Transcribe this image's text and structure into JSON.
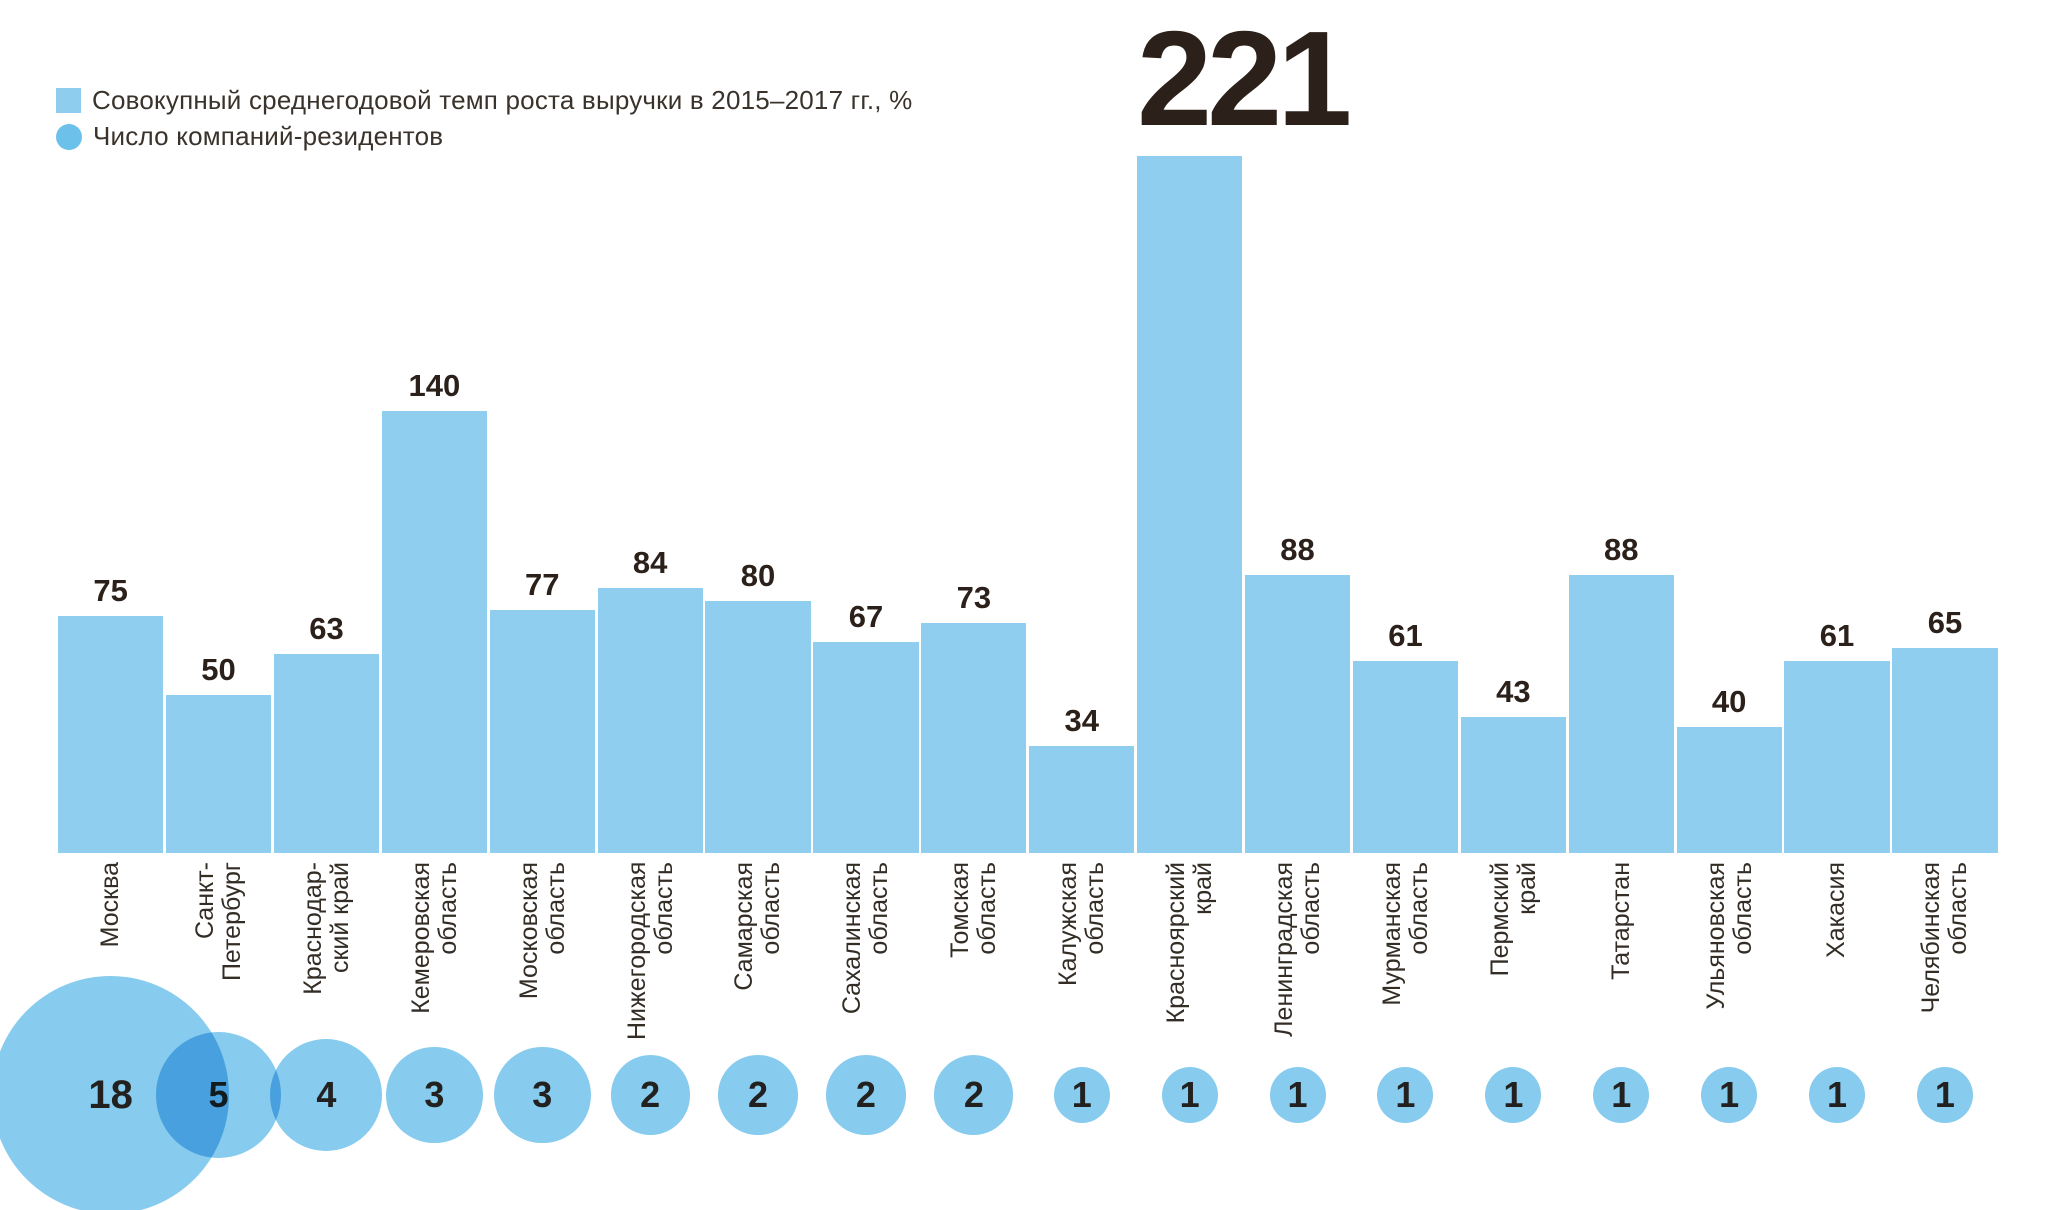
{
  "legend": {
    "bar_label": "Совокупный среднегодовой темп роста выручки в 2015–2017 гг., %",
    "bubble_label": "Число компаний-резидентов"
  },
  "colors": {
    "bar": "#8FCEEF",
    "bubble": "#87CBEE",
    "legend_square": "#8FCDEF",
    "legend_circle": "#6CC1EA",
    "value_text": "#2B211A",
    "label_text": "#332D26"
  },
  "regions": [
    {
      "name": "Москва",
      "display_label": "Москва",
      "growth": 75,
      "companies": 18
    },
    {
      "name": "Санкт-Петербург",
      "display_label": "Санкт-\nПетербург",
      "growth": 50,
      "companies": 5
    },
    {
      "name": "Краснодарский край",
      "display_label": "Краснодар-\nский край",
      "growth": 63,
      "companies": 4
    },
    {
      "name": "Кемеровская область",
      "display_label": "Кемеровская\nобласть",
      "growth": 140,
      "companies": 3
    },
    {
      "name": "Московская область",
      "display_label": "Московская\nобласть",
      "growth": 77,
      "companies": 3
    },
    {
      "name": "Нижегородская область",
      "display_label": "Нижегородская\nобласть",
      "growth": 84,
      "companies": 2
    },
    {
      "name": "Самарская область",
      "display_label": "Самарская\nобласть",
      "growth": 80,
      "companies": 2
    },
    {
      "name": "Сахалинская область",
      "display_label": "Сахалинская\nобласть",
      "growth": 67,
      "companies": 2
    },
    {
      "name": "Томская область",
      "display_label": "Томская\nобласть",
      "growth": 73,
      "companies": 2
    },
    {
      "name": "Калужская область",
      "display_label": "Калужская\nобласть",
      "growth": 34,
      "companies": 1
    },
    {
      "name": "Красноярский край",
      "display_label": "Красноярский\nкрай",
      "growth": 221,
      "companies": 1
    },
    {
      "name": "Ленинградская область",
      "display_label": "Ленинградская\nобласть",
      "growth": 88,
      "companies": 1
    },
    {
      "name": "Мурманская область",
      "display_label": "Мурманская\nобласть",
      "growth": 61,
      "companies": 1
    },
    {
      "name": "Пермский край",
      "display_label": "Пермский\nкрай",
      "growth": 43,
      "companies": 1
    },
    {
      "name": "Татарстан",
      "display_label": "Татарстан",
      "growth": 88,
      "companies": 1
    },
    {
      "name": "Ульяновская область",
      "display_label": "Ульяновская\nобласть",
      "growth": 40,
      "companies": 1
    },
    {
      "name": "Хакасия",
      "display_label": "Хакасия",
      "growth": 61,
      "companies": 1
    },
    {
      "name": "Челябинская область",
      "display_label": "Челябинская\nобласть",
      "growth": 65,
      "companies": 1
    }
  ],
  "chart_data": {
    "type": "bar",
    "title": "",
    "xlabel": "",
    "ylabel": "",
    "grid": false,
    "legend_position": "top-left",
    "ylim": [
      0,
      230
    ],
    "categories": [
      "Москва",
      "Санкт-Петербург",
      "Краснодарский край",
      "Кемеровская область",
      "Московская область",
      "Нижегородская область",
      "Самарская область",
      "Сахалинская область",
      "Томская область",
      "Калужская область",
      "Красноярский край",
      "Ленинградская область",
      "Мурманская область",
      "Пермский край",
      "Татарстан",
      "Ульяновская область",
      "Хакасия",
      "Челябинская область"
    ],
    "series": [
      {
        "name": "Совокупный среднегодовой темп роста выручки в 2015–2017 гг., %",
        "type": "bar",
        "values": [
          75,
          50,
          63,
          140,
          77,
          84,
          80,
          67,
          73,
          34,
          221,
          88,
          61,
          43,
          88,
          40,
          61,
          65
        ]
      },
      {
        "name": "Число компаний-резидентов",
        "type": "bubble",
        "values": [
          18,
          5,
          4,
          3,
          3,
          2,
          2,
          2,
          2,
          1,
          1,
          1,
          1,
          1,
          1,
          1,
          1,
          1
        ]
      }
    ]
  }
}
